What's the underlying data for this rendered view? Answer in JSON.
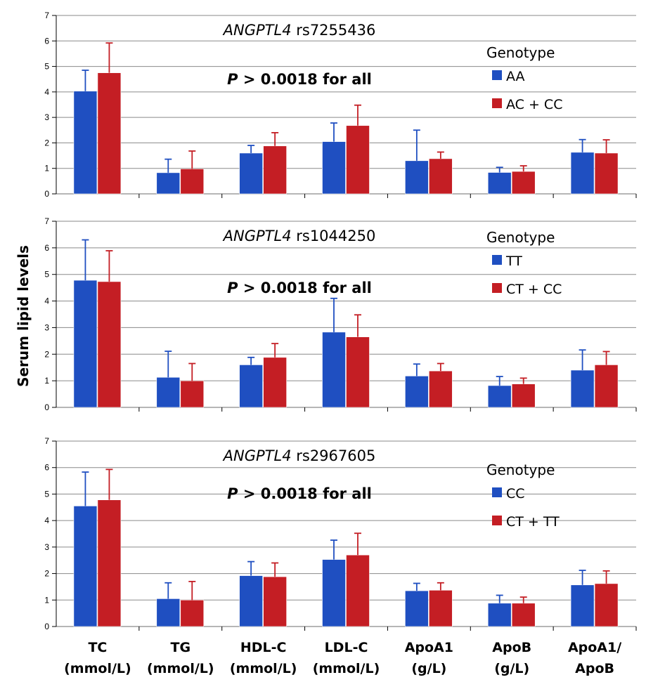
{
  "chart_data": {
    "ylabel": "Serum lipid levels",
    "categories": [
      [
        "TC",
        "(mmol/L)"
      ],
      [
        "TG",
        "(mmol/L)"
      ],
      [
        "HDL-C",
        "(mmol/L)"
      ],
      [
        "LDL-C",
        "(mmol/L)"
      ],
      [
        "ApoA1",
        "(g/L)"
      ],
      [
        "ApoB",
        "(g/L)"
      ],
      [
        "ApoA1/",
        "ApoB"
      ]
    ],
    "colors": {
      "series1": "#1f4fc1",
      "series2": "#c41e24",
      "grid": "#8a8a8a"
    },
    "panels": [
      {
        "type": "bar",
        "gene": "ANGPTL4",
        "snp": "rs7255436",
        "p_prefix": "P",
        "p_text": " > 0.0018 for all",
        "legend_title": "Genotype",
        "ylim": [
          0,
          7
        ],
        "yticks": [
          0,
          1,
          2,
          3,
          4,
          5,
          6,
          7
        ],
        "series": [
          {
            "name": "AA",
            "values": [
              4.03,
              0.83,
              1.6,
              2.05,
              1.3,
              0.84,
              1.63
            ],
            "errors": [
              0.82,
              0.53,
              0.3,
              0.73,
              1.2,
              0.2,
              0.5
            ]
          },
          {
            "name": "AC + CC",
            "values": [
              4.75,
              0.98,
              1.88,
              2.68,
              1.38,
              0.88,
              1.6
            ],
            "errors": [
              1.17,
              0.7,
              0.52,
              0.8,
              0.26,
              0.22,
              0.52
            ]
          }
        ]
      },
      {
        "type": "bar",
        "gene": "ANGPTL4",
        "snp": "rs1044250",
        "p_prefix": "P",
        "p_text": " > 0.0018 for all",
        "legend_title": "Genotype",
        "ylim": [
          0,
          7
        ],
        "yticks": [
          0,
          1,
          2,
          3,
          4,
          5,
          6,
          7
        ],
        "series": [
          {
            "name": "TT",
            "values": [
              4.78,
              1.13,
              1.6,
              2.83,
              1.18,
              0.82,
              1.4
            ],
            "errors": [
              1.52,
              0.98,
              0.28,
              1.27,
              0.45,
              0.34,
              0.76
            ]
          },
          {
            "name": "CT + CC",
            "values": [
              4.73,
              1.0,
              1.88,
              2.65,
              1.37,
              0.88,
              1.6
            ],
            "errors": [
              1.16,
              0.65,
              0.52,
              0.83,
              0.28,
              0.22,
              0.5
            ]
          }
        ]
      },
      {
        "type": "bar",
        "gene": "ANGPTL4",
        "snp": "rs2967605",
        "p_prefix": "P",
        "p_text": " > 0.0018 for all",
        "legend_title": "Genotype",
        "ylim": [
          0,
          7
        ],
        "yticks": [
          0,
          1,
          2,
          3,
          4,
          5,
          6,
          7
        ],
        "series": [
          {
            "name": "CC",
            "values": [
              4.55,
              1.05,
              1.92,
              2.53,
              1.35,
              0.88,
              1.57
            ],
            "errors": [
              1.28,
              0.6,
              0.53,
              0.73,
              0.28,
              0.3,
              0.55
            ]
          },
          {
            "name": "CT + TT",
            "values": [
              4.78,
              1.0,
              1.88,
              2.7,
              1.37,
              0.88,
              1.62
            ],
            "errors": [
              1.15,
              0.7,
              0.52,
              0.82,
              0.28,
              0.23,
              0.48
            ]
          }
        ]
      }
    ]
  }
}
